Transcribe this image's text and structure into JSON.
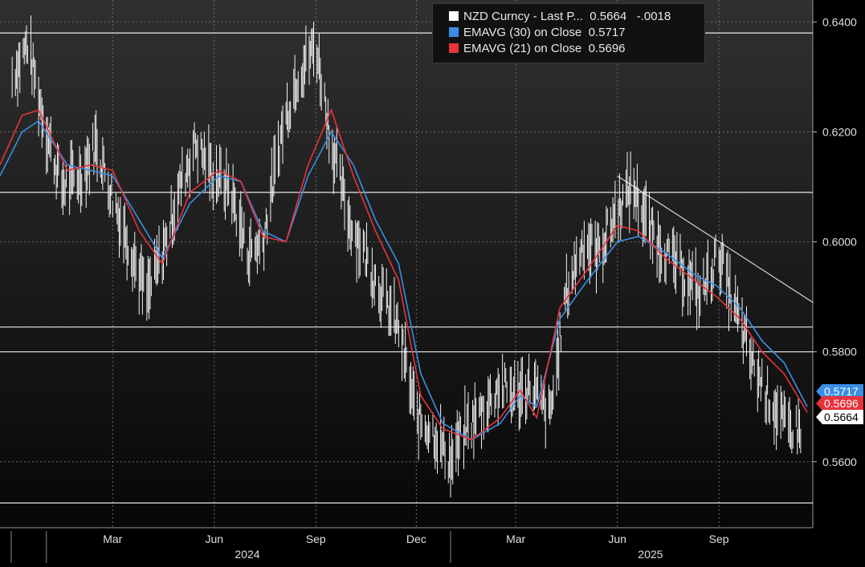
{
  "chart_data": {
    "type": "line",
    "title": "",
    "ylim": [
      0.548,
      0.644
    ],
    "xlim": [
      "2023-11-20",
      "2025-11-25"
    ],
    "y_ticks": [
      "0.6400",
      "0.6200",
      "0.6000",
      "0.5800",
      "0.5600"
    ],
    "y_tick_values": [
      0.64,
      0.62,
      0.6,
      0.58,
      0.56
    ],
    "x_month_ticks": [
      {
        "date": "2024-03-01",
        "label": "Mar"
      },
      {
        "date": "2024-06-01",
        "label": "Jun"
      },
      {
        "date": "2024-09-01",
        "label": "Sep"
      },
      {
        "date": "2024-12-01",
        "label": "Dec"
      },
      {
        "date": "2025-03-01",
        "label": "Mar"
      },
      {
        "date": "2025-06-01",
        "label": "Jun"
      },
      {
        "date": "2025-09-01",
        "label": "Sep"
      }
    ],
    "x_year_labels": [
      {
        "date": "2024-07-01",
        "label": "2024"
      },
      {
        "date": "2025-07-01",
        "label": "2025"
      }
    ],
    "x_year_boundaries": [
      "2024-01-01",
      "2025-01-01"
    ],
    "grid": true,
    "legend_position": "top-center",
    "series": [
      {
        "name": "NZD Curncy - Last P... 0.5664 -.0018",
        "color": "#ffffff",
        "style": "bars",
        "x": [
          "2023-12-01",
          "2023-12-15",
          "2024-01-01",
          "2024-01-15",
          "2024-02-01",
          "2024-02-15",
          "2024-03-01",
          "2024-03-15",
          "2024-04-01",
          "2024-04-15",
          "2024-05-01",
          "2024-05-15",
          "2024-06-01",
          "2024-06-15",
          "2024-07-01",
          "2024-07-15",
          "2024-08-01",
          "2024-08-15",
          "2024-09-01",
          "2024-09-15",
          "2024-10-01",
          "2024-10-15",
          "2024-11-01",
          "2024-11-15",
          "2024-12-01",
          "2024-12-15",
          "2025-01-01",
          "2025-01-15",
          "2025-02-01",
          "2025-02-15",
          "2025-03-01",
          "2025-03-15",
          "2025-04-01",
          "2025-04-15",
          "2025-05-01",
          "2025-05-15",
          "2025-06-01",
          "2025-06-15",
          "2025-07-01",
          "2025-07-15",
          "2025-08-01",
          "2025-08-15",
          "2025-09-01",
          "2025-09-15",
          "2025-10-01",
          "2025-10-15",
          "2025-11-01",
          "2025-11-15"
        ],
        "values": [
          0.63,
          0.636,
          0.62,
          0.61,
          0.612,
          0.618,
          0.608,
          0.6,
          0.59,
          0.598,
          0.61,
          0.618,
          0.612,
          0.61,
          0.598,
          0.6,
          0.62,
          0.63,
          0.636,
          0.618,
          0.604,
          0.598,
          0.59,
          0.584,
          0.568,
          0.566,
          0.56,
          0.566,
          0.57,
          0.574,
          0.572,
          0.574,
          0.568,
          0.59,
          0.6,
          0.598,
          0.606,
          0.61,
          0.602,
          0.598,
          0.594,
          0.59,
          0.598,
          0.588,
          0.578,
          0.572,
          0.566,
          0.566
        ]
      },
      {
        "name": "EMAVG (30) on Close 0.5717",
        "color": "#3a8ee6",
        "style": "line",
        "x": [
          "2023-11-20",
          "2023-12-10",
          "2023-12-25",
          "2024-01-20",
          "2024-02-10",
          "2024-03-01",
          "2024-03-25",
          "2024-04-15",
          "2024-05-10",
          "2024-06-05",
          "2024-06-25",
          "2024-07-15",
          "2024-08-05",
          "2024-08-25",
          "2024-09-15",
          "2024-10-05",
          "2024-10-25",
          "2024-11-15",
          "2024-12-05",
          "2024-12-25",
          "2025-01-20",
          "2025-02-15",
          "2025-03-05",
          "2025-03-20",
          "2025-04-10",
          "2025-05-05",
          "2025-06-01",
          "2025-06-20",
          "2025-07-15",
          "2025-08-10",
          "2025-08-30",
          "2025-09-20",
          "2025-10-10",
          "2025-10-30",
          "2025-11-20"
        ],
        "values": [
          0.612,
          0.62,
          0.622,
          0.614,
          0.613,
          0.612,
          0.604,
          0.597,
          0.607,
          0.612,
          0.611,
          0.602,
          0.6,
          0.612,
          0.62,
          0.614,
          0.604,
          0.596,
          0.576,
          0.567,
          0.564,
          0.567,
          0.572,
          0.57,
          0.586,
          0.593,
          0.6,
          0.601,
          0.598,
          0.594,
          0.592,
          0.588,
          0.582,
          0.578,
          0.57
        ]
      },
      {
        "name": "EMAVG (21) on Close 0.5696",
        "color": "#e8323c",
        "style": "line",
        "x": [
          "2023-11-20",
          "2023-12-10",
          "2023-12-25",
          "2024-01-20",
          "2024-02-10",
          "2024-03-01",
          "2024-03-25",
          "2024-04-15",
          "2024-05-10",
          "2024-06-05",
          "2024-06-25",
          "2024-07-15",
          "2024-08-05",
          "2024-08-25",
          "2024-09-15",
          "2024-10-05",
          "2024-10-25",
          "2024-11-15",
          "2024-12-05",
          "2024-12-25",
          "2025-01-20",
          "2025-02-15",
          "2025-03-05",
          "2025-03-20",
          "2025-04-10",
          "2025-05-05",
          "2025-06-01",
          "2025-06-20",
          "2025-07-15",
          "2025-08-10",
          "2025-08-30",
          "2025-09-20",
          "2025-10-10",
          "2025-10-30",
          "2025-11-20"
        ],
        "values": [
          0.614,
          0.623,
          0.624,
          0.613,
          0.614,
          0.613,
          0.602,
          0.596,
          0.609,
          0.613,
          0.611,
          0.601,
          0.6,
          0.614,
          0.624,
          0.612,
          0.602,
          0.593,
          0.572,
          0.566,
          0.564,
          0.568,
          0.573,
          0.568,
          0.588,
          0.595,
          0.603,
          0.602,
          0.597,
          0.593,
          0.59,
          0.586,
          0.58,
          0.576,
          0.569
        ]
      }
    ],
    "horizontal_lines": [
      0.638,
      0.609,
      0.5845,
      0.58,
      0.5525
    ],
    "trendline": {
      "from": {
        "date": "2025-06-01",
        "value": 0.612
      },
      "to": {
        "date": "2025-11-25",
        "value": 0.589
      }
    },
    "last_value_tags": [
      {
        "label": "0.5717",
        "value": 0.5717,
        "bg": "#3a8ee6",
        "fg": "#ffffff"
      },
      {
        "label": "0.5696",
        "value": 0.5696,
        "bg": "#e8323c",
        "fg": "#ffffff"
      },
      {
        "label": "0.5664",
        "value": 0.5664,
        "bg": "#ffffff",
        "fg": "#000000"
      }
    ]
  },
  "legend": {
    "items": [
      {
        "label": "NZD Curncy - Last P...",
        "value": "0.5664",
        "change": "-.0018",
        "color": "#ffffff"
      },
      {
        "label": "EMAVG (30)  on Close",
        "value": "0.5717",
        "change": "",
        "color": "#3a8ee6"
      },
      {
        "label": "EMAVG (21)  on Close",
        "value": "0.5696",
        "change": "",
        "color": "#e8323c"
      }
    ]
  }
}
